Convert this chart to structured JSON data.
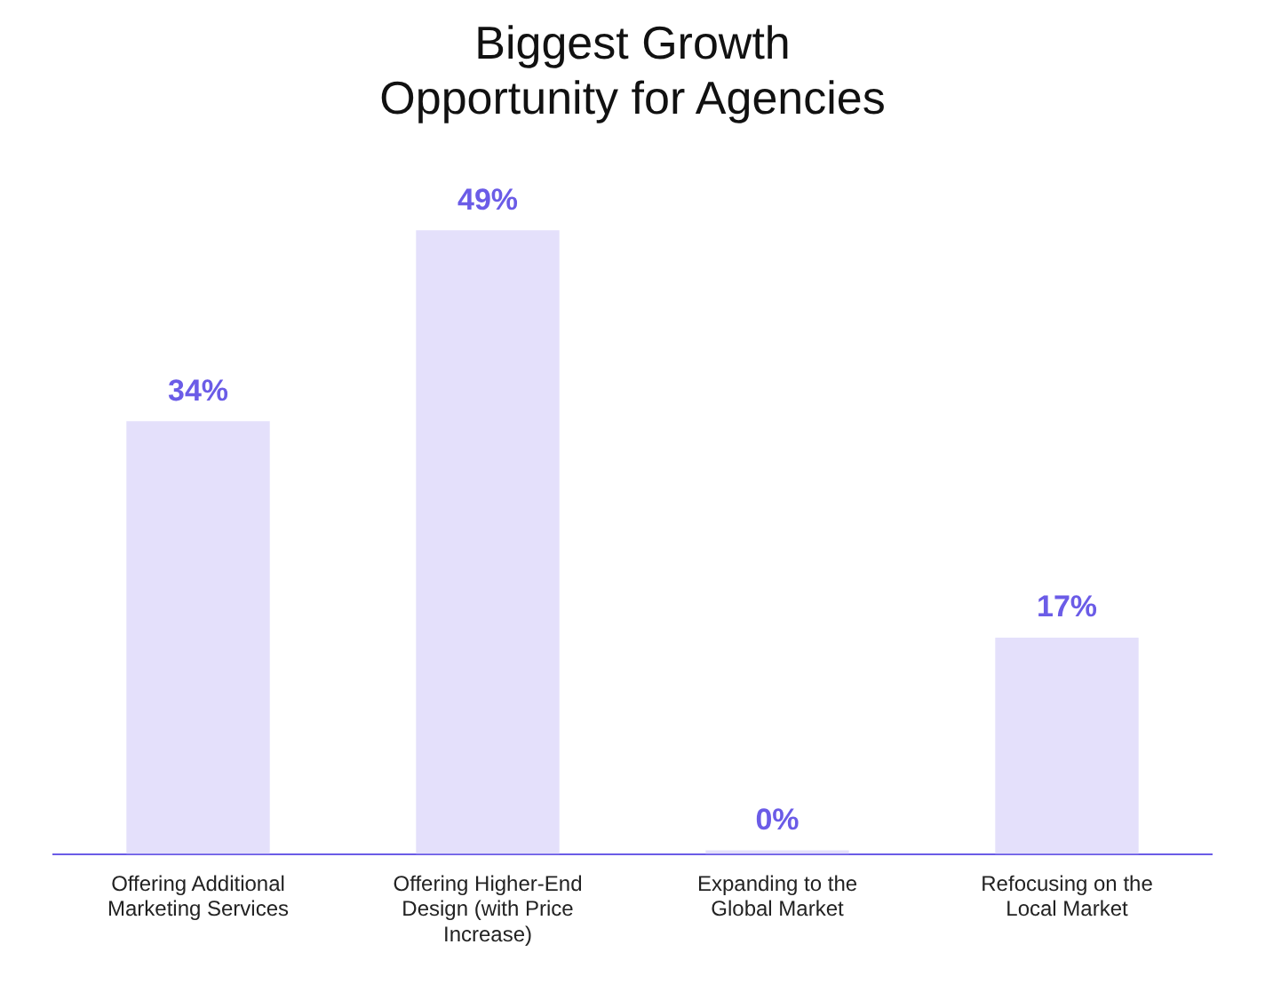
{
  "chart_data": {
    "type": "bar",
    "title": "Biggest Growth Opportunity for Agencies",
    "categories": [
      "Offering Additional Marketing Services",
      "Offering Higher-End Design (with Price Increase)",
      "Expanding to the Global Market",
      "Refocusing on the Local Market"
    ],
    "values": [
      34,
      49,
      0,
      17
    ],
    "color": "#e4e0fb",
    "value_labels": [
      "34%",
      "49%",
      "0%",
      "17%"
    ],
    "grid": false,
    "legend": false
  }
}
